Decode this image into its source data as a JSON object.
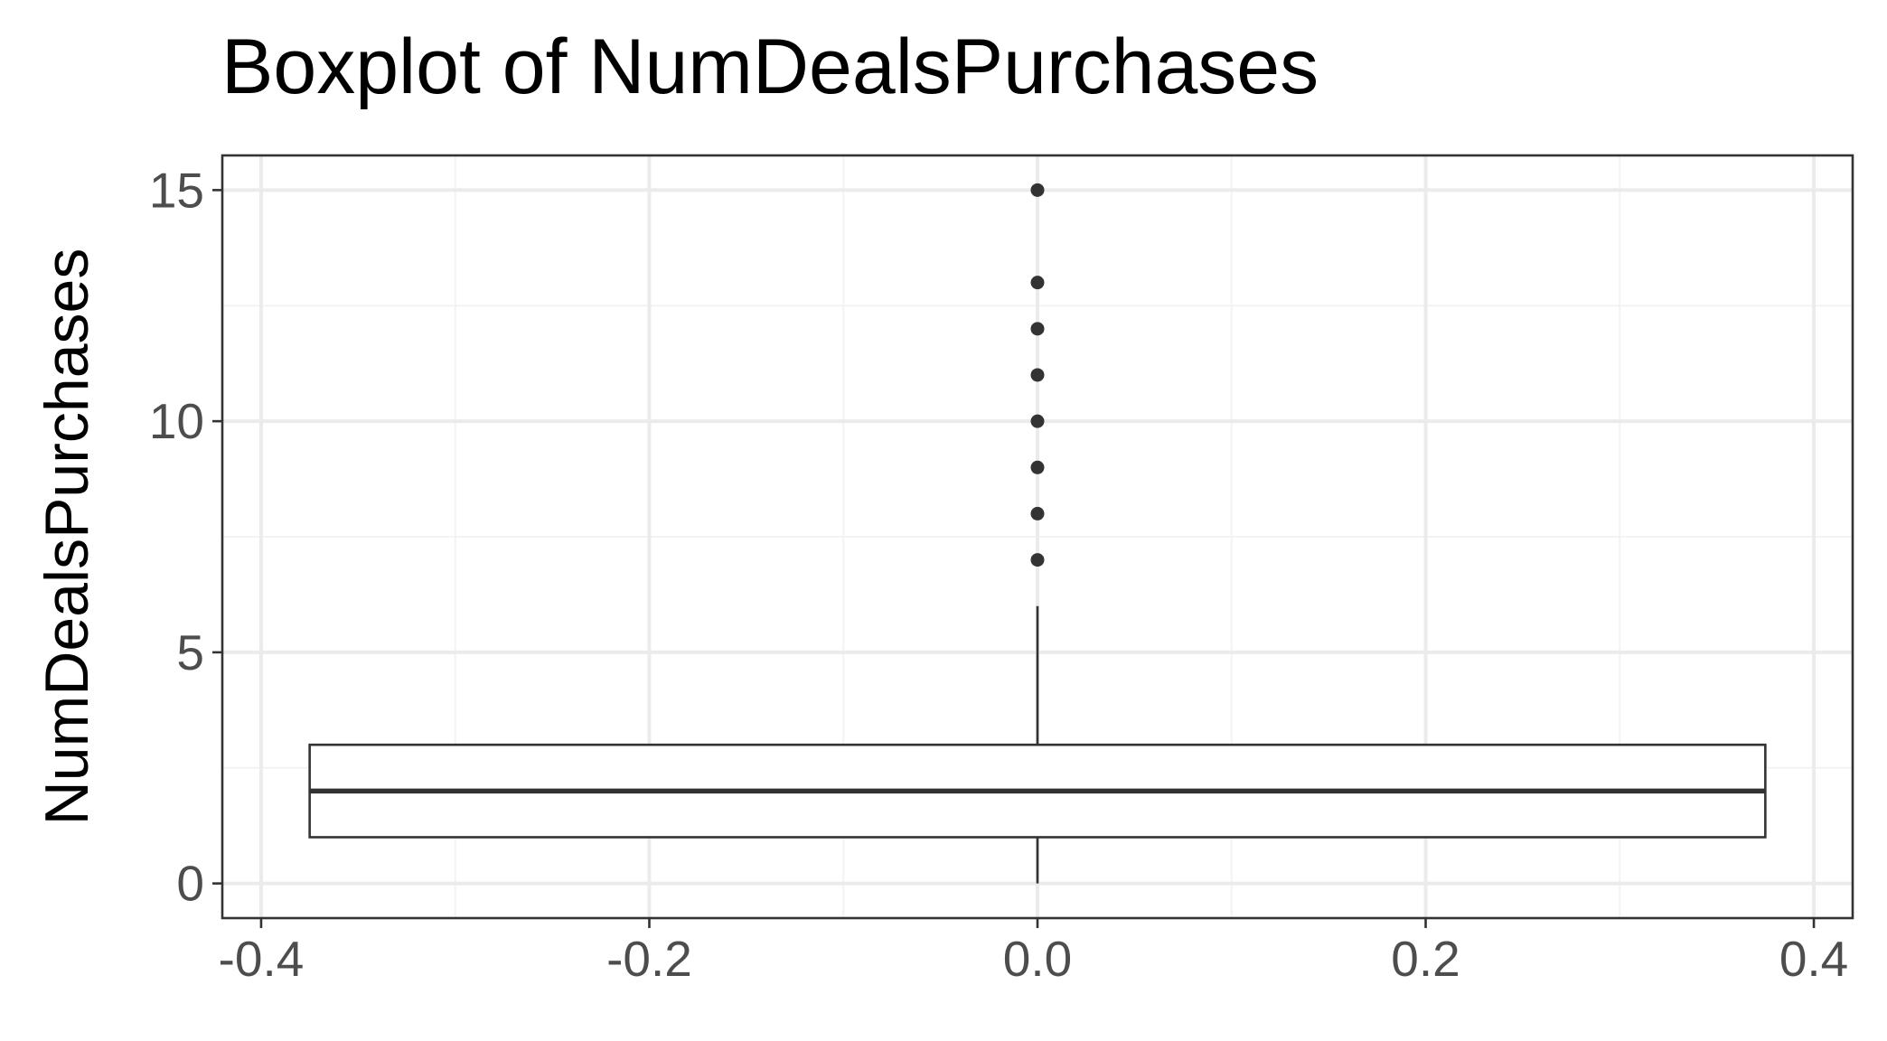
{
  "chart_data": {
    "type": "boxplot",
    "title": "Boxplot of NumDealsPurchases",
    "xlabel": "",
    "ylabel": "NumDealsPurchases",
    "xlim": [
      -0.42,
      0.42
    ],
    "ylim": [
      -0.75,
      15.75
    ],
    "x_ticks": [
      -0.4,
      -0.2,
      0.0,
      0.2,
      0.4
    ],
    "x_tick_labels": [
      "-0.4",
      "-0.2",
      "0.0",
      "0.2",
      "0.4"
    ],
    "y_ticks": [
      0,
      5,
      10,
      15
    ],
    "y_tick_labels": [
      "0",
      "5",
      "10",
      "15"
    ],
    "grid": true,
    "box": {
      "x_center": 0.0,
      "x_left": -0.375,
      "x_right": 0.375,
      "min": 0,
      "q1": 1,
      "median": 2,
      "q3": 3,
      "max": 6
    },
    "outliers": [
      7,
      8,
      9,
      10,
      11,
      12,
      13,
      15
    ],
    "colors": {
      "background": "#ffffff",
      "grid_major": "#ebebeb",
      "grid_minor": "#f3f3f3",
      "panel_border": "#333333",
      "box_line": "#333333",
      "point": "#333333",
      "tick_text": "#4d4d4d",
      "title_text": "#000000"
    }
  }
}
